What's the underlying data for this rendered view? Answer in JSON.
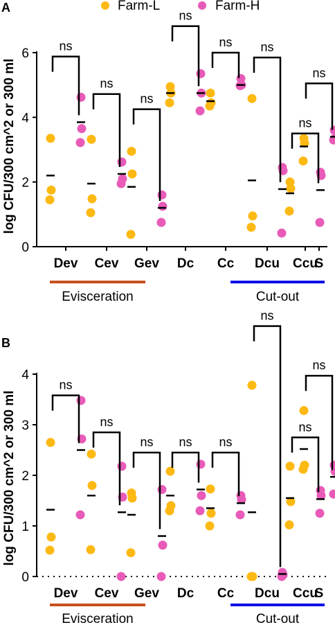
{
  "legend": [
    {
      "name": "Farm-L",
      "color": "#FDB913"
    },
    {
      "name": "Farm-H",
      "color": "#E85BB8"
    }
  ],
  "group_labels": [
    {
      "label": "Evisceration",
      "color": "#C8501E"
    },
    {
      "label": "Cut-out",
      "color": "#1010E8"
    }
  ],
  "chart_data": [
    {
      "panel": "A",
      "type": "scatter",
      "ylabel": "log CFU/300 cm^2 or 300 ml",
      "ylim": [
        0,
        6
      ],
      "yticks": [
        0,
        2,
        4,
        6
      ],
      "categories": [
        "Dev",
        "Cev",
        "Gev",
        "Dc",
        "Cc",
        "Dcu",
        "Ccu",
        "S"
      ],
      "series": [
        {
          "name": "Farm-L",
          "points": [
            [
              3.35,
              1.75,
              1.45
            ],
            [
              3.32,
              1.48,
              1.05
            ],
            [
              2.95,
              2.25,
              0.38
            ],
            [
              4.95,
              4.75,
              4.45
            ],
            [
              4.75,
              4.45,
              4.35
            ],
            [
              4.58,
              0.95,
              0.6
            ],
            [
              2.0,
              1.8,
              1.1
            ],
            [
              3.35,
              3.2,
              2.65
            ]
          ],
          "means": [
            2.2,
            1.95,
            1.85,
            4.75,
            4.5,
            2.05,
            1.65,
            3.1
          ]
        },
        {
          "name": "Farm-H",
          "points": [
            [
              4.62,
              3.65,
              3.22
            ],
            [
              2.62,
              2.1,
              1.95
            ],
            [
              1.6,
              1.25,
              0.75
            ],
            [
              5.35,
              4.75,
              4.2
            ],
            [
              5.2,
              5.0,
              4.98
            ],
            [
              2.45,
              2.35,
              0.42
            ],
            [
              2.3,
              2.2,
              0.75
            ],
            [
              3.6,
              3.35,
              3.3
            ]
          ],
          "means": [
            3.85,
            2.25,
            1.2,
            4.75,
            5.0,
            1.78,
            1.75,
            3.4
          ]
        }
      ],
      "comparison_labels": [
        "ns",
        "ns",
        "ns",
        "ns",
        "ns",
        "ns",
        "ns",
        "ns"
      ],
      "bracket_tops": [
        5.88,
        4.72,
        4.25,
        6.82,
        6.0,
        5.85,
        3.5,
        5.05
      ]
    },
    {
      "panel": "B",
      "type": "scatter",
      "ylabel": "log CFU/300 cm^2 or 300 ml",
      "ylim": [
        0,
        4
      ],
      "yticks": [
        0,
        1,
        2,
        3,
        4
      ],
      "categories": [
        "Dev",
        "Cev",
        "Gev",
        "Dc",
        "Cc",
        "Dcu",
        "Ccu",
        "S"
      ],
      "series": [
        {
          "name": "Farm-L",
          "points": [
            [
              2.65,
              0.78,
              0.52
            ],
            [
              2.42,
              1.8,
              0.53
            ],
            [
              1.65,
              1.55,
              0.47
            ],
            [
              2.08,
              1.4,
              1.3
            ],
            [
              1.73,
              1.25,
              1.0
            ],
            [
              3.78,
              0.0,
              0.0
            ],
            [
              2.18,
              1.48,
              1.02
            ],
            [
              3.28,
              2.2,
              2.12
            ]
          ],
          "means": [
            1.32,
            1.6,
            1.22,
            1.6,
            1.35,
            1.27,
            1.55,
            2.52
          ]
        },
        {
          "name": "Farm-H",
          "points": [
            [
              3.48,
              2.72,
              1.22
            ],
            [
              2.18,
              1.57,
              0.0
            ],
            [
              1.72,
              0.62,
              0.0
            ],
            [
              2.22,
              1.6,
              1.3
            ],
            [
              1.6,
              1.52,
              1.22
            ],
            [
              0.08,
              0.03,
              0.0
            ],
            [
              1.7,
              1.6,
              1.25
            ],
            [
              2.2,
              2.08,
              1.63
            ]
          ],
          "means": [
            2.5,
            1.27,
            0.8,
            1.72,
            1.45,
            0.05,
            1.53,
            1.97
          ]
        }
      ],
      "comparison_labels": [
        "ns",
        "ns",
        "ns",
        "ns",
        "ns",
        "ns",
        "ns",
        "ns"
      ],
      "bracket_tops": [
        3.58,
        2.85,
        2.45,
        2.45,
        2.45,
        4.95,
        2.75,
        3.97
      ]
    }
  ]
}
